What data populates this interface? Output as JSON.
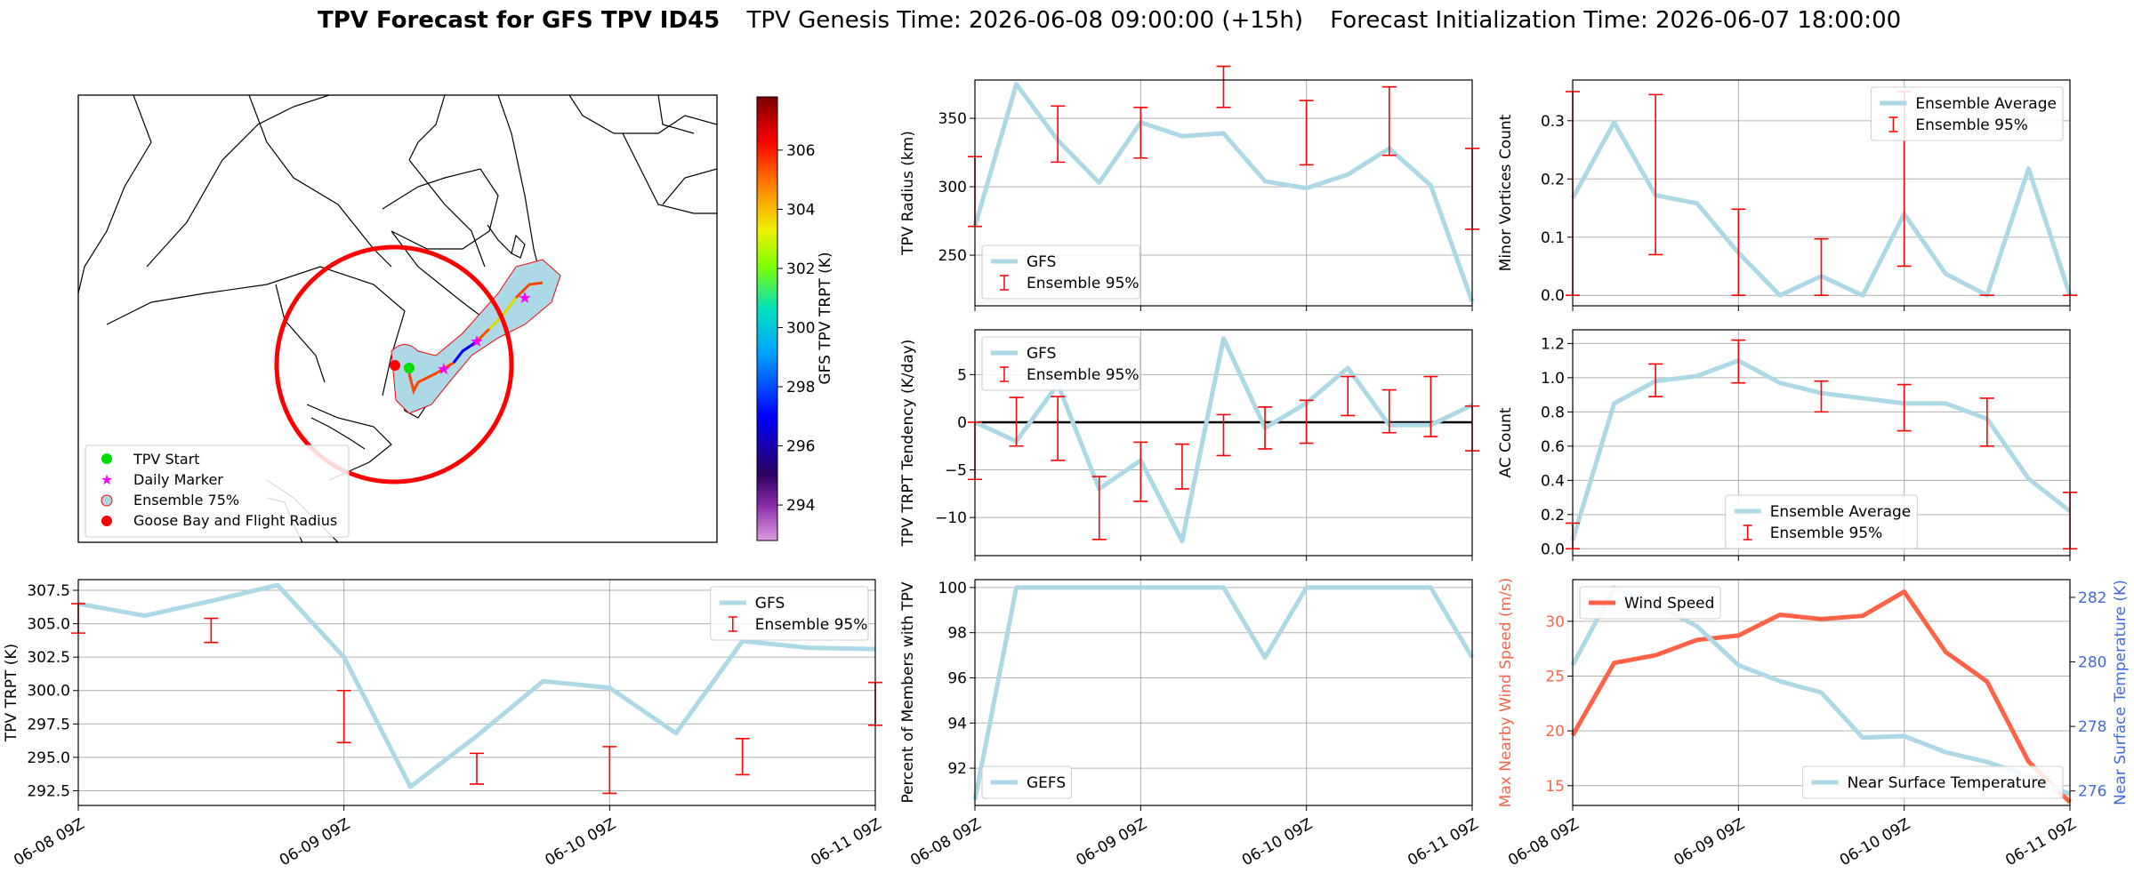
{
  "header": {
    "title_bold": "TPV Forecast for GFS TPV ID45",
    "genesis": "TPV Genesis Time: 2026-06-08 09:00:00 (+15h)",
    "init": "Forecast Initialization Time: 2026-06-07 18:00:00"
  },
  "colors": {
    "gfs_line": "#add8e6",
    "error_bar": "#ff0000",
    "wind": "#ff6347",
    "temp_axis": "#4169e1",
    "zero_line": "#000000"
  },
  "map": {
    "colorbar_label": "GFS TPV TRPT (K)",
    "colorbar_ticks": [
      "294",
      "296",
      "298",
      "300",
      "302",
      "304",
      "306"
    ],
    "colorbar_range": [
      292.8,
      307.8
    ],
    "legend": [
      {
        "label": "TPV Start",
        "marker": "green-circle"
      },
      {
        "label": "Daily Marker",
        "marker": "magenta-star"
      },
      {
        "label": "Ensemble 75%",
        "marker": "lightblue-circle-red-edge"
      },
      {
        "label": "Goose Bay and Flight Radius",
        "marker": "red-circle"
      }
    ]
  },
  "time_ticks": [
    "06-08 09Z",
    "06-09 09Z",
    "06-10 09Z",
    "06-11 09Z"
  ],
  "chart_data": [
    {
      "id": "radius",
      "type": "line",
      "ylabel": "TPV Radius (km)",
      "ylim": [
        213,
        378
      ],
      "yticks": [
        250,
        300,
        350
      ],
      "ytick_labels": [
        "250",
        "300",
        "350"
      ],
      "xlim": [
        0,
        72
      ],
      "series": [
        {
          "name": "GFS",
          "x": [
            0,
            6,
            12,
            18,
            24,
            30,
            36,
            42,
            48,
            54,
            60,
            66,
            72
          ],
          "y": [
            271,
            375,
            334,
            303,
            347,
            337,
            339,
            304,
            299,
            309,
            328,
            301,
            216
          ]
        }
      ],
      "errorbars": {
        "name": "Ensemble 95%",
        "x": [
          0,
          12,
          24,
          36,
          48,
          60,
          72
        ],
        "low": [
          271,
          318,
          321,
          358,
          316,
          323,
          269
        ],
        "high": [
          322,
          359,
          358,
          388,
          363,
          373,
          328
        ]
      },
      "legend": {
        "loc": "lower-left",
        "labels": [
          "GFS",
          "Ensemble 95%"
        ]
      }
    },
    {
      "id": "minor",
      "type": "line",
      "ylabel": "Minor Vortices Count",
      "ylim": [
        -0.018,
        0.37
      ],
      "yticks": [
        0,
        0.1,
        0.2,
        0.3
      ],
      "ytick_labels": [
        "0.0",
        "0.1",
        "0.2",
        "0.3"
      ],
      "xlim": [
        0,
        72
      ],
      "series": [
        {
          "name": "Ensemble Average",
          "x": [
            0,
            6,
            12,
            18,
            24,
            30,
            36,
            42,
            48,
            54,
            60,
            66,
            72
          ],
          "y": [
            0.167,
            0.297,
            0.172,
            0.158,
            0.073,
            0.0,
            0.033,
            0.0,
            0.14,
            0.037,
            0.0,
            0.218,
            0.0
          ]
        }
      ],
      "errorbars": {
        "name": "Ensemble 95%",
        "x": [
          0,
          12,
          24,
          36,
          48,
          60,
          72
        ],
        "low": [
          0.0,
          0.07,
          0.0,
          0.0,
          0.05,
          0.0,
          0.0
        ],
        "high": [
          0.35,
          0.345,
          0.148,
          0.097,
          0.35,
          0.0,
          0.0
        ]
      },
      "legend": {
        "loc": "upper-right",
        "labels": [
          "Ensemble Average",
          "Ensemble 95%"
        ]
      }
    },
    {
      "id": "tendency",
      "type": "line",
      "ylabel": "TPV TRPT Tendency (K/day)",
      "ylim": [
        -14,
        9.7
      ],
      "yticks": [
        -10,
        -5,
        0,
        5
      ],
      "ytick_labels": [
        "−10",
        "−5",
        "0",
        "5"
      ],
      "xlim": [
        0,
        72
      ],
      "hline": 0,
      "series": [
        {
          "name": "GFS",
          "x": [
            0,
            6,
            12,
            18,
            24,
            30,
            36,
            42,
            48,
            54,
            60,
            66,
            72
          ],
          "y": [
            0,
            -2,
            4,
            -7,
            -4,
            -12.5,
            8.8,
            -0.6,
            2,
            5.7,
            -0.3,
            -0.3,
            1.8
          ]
        }
      ],
      "errorbars": {
        "name": "Ensemble 95%",
        "x": [
          0,
          6,
          12,
          18,
          24,
          30,
          36,
          42,
          48,
          54,
          60,
          66,
          72
        ],
        "low": [
          -6,
          -2.5,
          -4,
          -12.3,
          -8.3,
          -7,
          -3.5,
          -2.8,
          -2.2,
          0.7,
          -1.1,
          -1.5,
          -3
        ],
        "high": [
          0,
          2.6,
          2.7,
          -5.7,
          -2.1,
          -2.3,
          0.8,
          1.6,
          2.3,
          4.8,
          3.4,
          4.8,
          1.7
        ]
      },
      "legend": {
        "loc": "upper-left",
        "labels": [
          "GFS",
          "Ensemble 95%"
        ]
      }
    },
    {
      "id": "ac",
      "type": "line",
      "ylabel": "AC Count",
      "ylim": [
        -0.04,
        1.28
      ],
      "yticks": [
        0,
        0.2,
        0.4,
        0.6,
        0.8,
        1.0,
        1.2
      ],
      "ytick_labels": [
        "0.0",
        "0.2",
        "0.4",
        "0.6",
        "0.8",
        "1.0",
        "1.2"
      ],
      "xlim": [
        0,
        72
      ],
      "series": [
        {
          "name": "Ensemble Average",
          "x": [
            0,
            6,
            12,
            18,
            24,
            30,
            36,
            42,
            48,
            54,
            60,
            66,
            72
          ],
          "y": [
            0.05,
            0.85,
            0.98,
            1.01,
            1.1,
            0.97,
            0.91,
            0.88,
            0.85,
            0.85,
            0.76,
            0.41,
            0.22
          ]
        }
      ],
      "errorbars": {
        "name": "Ensemble 95%",
        "x": [
          0,
          12,
          24,
          36,
          48,
          60,
          72
        ],
        "low": [
          0,
          0.89,
          0.97,
          0.8,
          0.69,
          0.6,
          0.0
        ],
        "high": [
          0.15,
          1.08,
          1.22,
          0.98,
          0.96,
          0.88,
          0.33
        ]
      },
      "legend": {
        "loc": "lower-center",
        "labels": [
          "Ensemble Average",
          "Ensemble 95%"
        ]
      }
    },
    {
      "id": "trpt",
      "type": "line",
      "ylabel": "TPV TRPT (K)",
      "ylim": [
        291.4,
        308.3
      ],
      "yticks": [
        292.5,
        295,
        297.5,
        300,
        302.5,
        305,
        307.5
      ],
      "ytick_labels": [
        "292.5",
        "295.0",
        "297.5",
        "300.0",
        "302.5",
        "305.0",
        "307.5"
      ],
      "xlim": [
        0,
        72
      ],
      "series": [
        {
          "name": "GFS",
          "x": [
            0,
            6,
            12,
            18,
            24,
            30,
            36,
            42,
            48,
            54,
            60,
            66,
            72
          ],
          "y": [
            306.5,
            305.6,
            306.7,
            307.9,
            302.5,
            292.8,
            296.6,
            300.7,
            300.2,
            296.8,
            303.7,
            303.2,
            303.1
          ]
        }
      ],
      "errorbars": {
        "name": "Ensemble 95%",
        "x": [
          0,
          12,
          24,
          36,
          48,
          60,
          72
        ],
        "low": [
          304.3,
          303.6,
          296.1,
          293,
          292.3,
          293.7,
          297.4
        ],
        "high": [
          306.5,
          305.4,
          300,
          295.3,
          295.8,
          296.4,
          300.6
        ]
      },
      "legend": {
        "loc": "upper-right",
        "labels": [
          "GFS",
          "Ensemble 95%"
        ]
      }
    },
    {
      "id": "percent",
      "type": "line",
      "ylabel": "Percent of Members with TPV",
      "ylim": [
        90.35,
        100.35
      ],
      "yticks": [
        92,
        94,
        96,
        98,
        100
      ],
      "ytick_labels": [
        "92",
        "94",
        "96",
        "98",
        "100"
      ],
      "xlim": [
        0,
        72
      ],
      "series": [
        {
          "name": "GEFS",
          "x": [
            0,
            6,
            12,
            18,
            24,
            30,
            36,
            42,
            48,
            54,
            60,
            66,
            72
          ],
          "y": [
            90.6,
            100,
            100,
            100,
            100,
            100,
            100,
            96.9,
            100,
            100,
            100,
            100,
            96.9
          ]
        }
      ],
      "legend": {
        "loc": "lower-left",
        "labels": [
          "GEFS"
        ]
      }
    },
    {
      "id": "wind_temp",
      "type": "line",
      "ylabel": "Max Nearby Wind Speed (m/s)",
      "ylabel_right": "Near Surface Temperature (K)",
      "ylim": [
        13.2,
        33.8
      ],
      "yticks": [
        15,
        20,
        25,
        30
      ],
      "ytick_labels": [
        "15",
        "20",
        "25",
        "30"
      ],
      "ylim_right": [
        275.55,
        282.55
      ],
      "yticks_right": [
        276,
        278,
        280,
        282
      ],
      "ytick_labels_right": [
        "276",
        "278",
        "280",
        "282"
      ],
      "xlim": [
        0,
        72
      ],
      "series": [
        {
          "name": "Wind Speed",
          "axis": "left",
          "x": [
            0,
            6,
            12,
            18,
            24,
            30,
            36,
            42,
            48,
            54,
            60,
            66,
            72
          ],
          "y": [
            19.6,
            26.2,
            26.9,
            28.3,
            28.7,
            30.6,
            30.2,
            30.5,
            32.7,
            27.2,
            24.5,
            17.2,
            13.5
          ]
        },
        {
          "name": "Near Surface Temperature",
          "axis": "right",
          "x": [
            0,
            6,
            12,
            18,
            24,
            30,
            36,
            42,
            48,
            54,
            60,
            66,
            72
          ],
          "y": [
            279.9,
            282.3,
            281.8,
            281.1,
            279.9,
            279.4,
            279.05,
            277.65,
            277.7,
            277.2,
            276.9,
            276.45,
            275.9
          ]
        }
      ],
      "legend": {
        "loc": "upper-left",
        "labels": [
          "Wind Speed"
        ]
      },
      "legend2": {
        "loc": "lower-right",
        "labels": [
          "Near Surface Temperature"
        ]
      }
    }
  ]
}
